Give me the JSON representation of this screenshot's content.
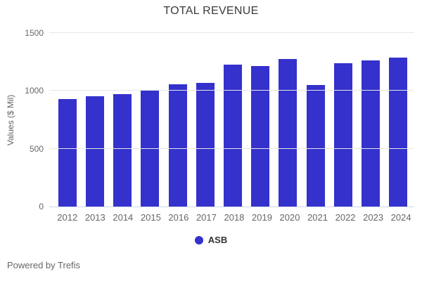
{
  "title": "TOTAL REVENUE",
  "footer": {
    "text": "Powered by Trefis"
  },
  "colors": {
    "bar": "#3431cc",
    "gridline": "#e6e6e6",
    "axis_line": "#ccd6eb",
    "title_text": "#3a3a3a",
    "tick_text": "#666666",
    "legend_text": "#333333"
  },
  "chart_data": {
    "type": "bar",
    "title": "TOTAL REVENUE",
    "xlabel": "",
    "ylabel": "Values ($ Mil)",
    "categories": [
      "2012",
      "2013",
      "2014",
      "2015",
      "2016",
      "2017",
      "2018",
      "2019",
      "2020",
      "2021",
      "2022",
      "2023",
      "2024"
    ],
    "series": [
      {
        "name": "ASB",
        "color": "#3431cc",
        "values": [
          930,
          951,
          973,
          1001,
          1056,
          1071,
          1229,
          1212,
          1273,
          1053,
          1236,
          1261,
          1289
        ]
      }
    ],
    "ylim": [
      0,
      1500
    ],
    "yticks": [
      0,
      500,
      1000,
      1500
    ],
    "grid": true,
    "legend_position": "bottom-center"
  }
}
